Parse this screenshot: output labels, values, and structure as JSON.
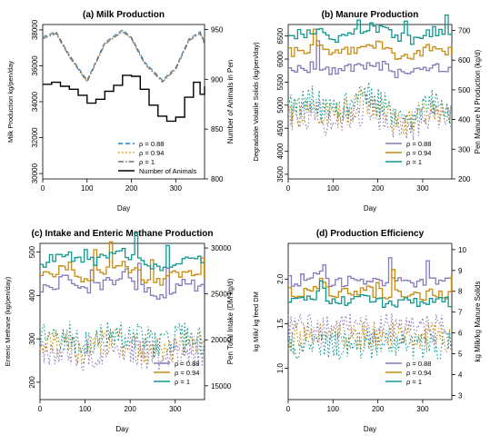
{
  "colors": {
    "purple": "#8878b8",
    "orange": "#c88a10",
    "teal": "#109890",
    "black": "#000000"
  },
  "chart_data": [
    {
      "type": "line",
      "title": "(a) Milk Production",
      "xlabel": "Day",
      "ylabel": "Milk Production kg/pen/day",
      "ylabel_right": "Number of Animals in Pen",
      "xlim": [
        0,
        365
      ],
      "ylim": [
        29700,
        38300
      ],
      "ylim_right": [
        800,
        955
      ],
      "xticks": [
        "0",
        "100",
        "200",
        "300"
      ],
      "yticks": [
        "30000",
        "32000",
        "34000",
        "36000",
        "38000"
      ],
      "yticks_right": [
        "800",
        "850",
        "900",
        "950"
      ],
      "legend_position": "bottom-right",
      "series": [
        {
          "name": "ρ = 0.88",
          "axis": "left",
          "style": "dashed",
          "color": "#2a7ab8",
          "x": [
            0,
            30,
            60,
            100,
            140,
            180,
            200,
            230,
            270,
            300,
            330,
            355,
            365
          ],
          "y": [
            37600,
            37900,
            36600,
            35200,
            37300,
            38000,
            37600,
            36200,
            35200,
            35900,
            37500,
            37900,
            37300
          ]
        },
        {
          "name": "ρ = 0.94",
          "axis": "left",
          "style": "dotted",
          "color": "#c88a10",
          "x": [
            0,
            30,
            60,
            100,
            140,
            180,
            200,
            230,
            270,
            300,
            330,
            355,
            365
          ],
          "y": [
            37550,
            37850,
            36550,
            35150,
            37250,
            37950,
            37550,
            36150,
            35150,
            35850,
            37450,
            37850,
            37250
          ]
        },
        {
          "name": "ρ = 1",
          "axis": "left",
          "style": "dashdot",
          "color": "#707070",
          "x": [
            0,
            30,
            60,
            100,
            140,
            180,
            200,
            230,
            270,
            300,
            330,
            355,
            365
          ],
          "y": [
            37500,
            37800,
            36500,
            35100,
            37200,
            37900,
            37500,
            36100,
            35100,
            35800,
            37400,
            37800,
            37200
          ]
        },
        {
          "name": "Number of Animals",
          "axis": "right",
          "style": "solid",
          "color": "#000000",
          "x": [
            0,
            20,
            40,
            60,
            80,
            100,
            120,
            140,
            160,
            180,
            200,
            220,
            240,
            260,
            280,
            300,
            320,
            340,
            355,
            365
          ],
          "y": [
            895,
            897,
            893,
            890,
            884,
            876,
            880,
            888,
            894,
            904,
            903,
            890,
            874,
            863,
            858,
            862,
            882,
            897,
            885,
            893
          ]
        }
      ]
    },
    {
      "type": "line",
      "title": "(b) Manure Production",
      "xlabel": "Day",
      "ylabel": "Degradable Volatile Solids (kg/pen/day)",
      "ylabel_right": "Pen Manure N Production (kg/d)",
      "xlim": [
        0,
        365
      ],
      "ylim": [
        3400,
        6750
      ],
      "ylim_right": [
        200,
        720
      ],
      "xticks": [
        "0",
        "100",
        "200",
        "300"
      ],
      "yticks": [
        "3500",
        "4000",
        "4500",
        "5000",
        "5500",
        "6000",
        "6500"
      ],
      "yticks_right": [
        "200",
        "300",
        "400",
        "500",
        "600",
        "700"
      ],
      "legend_position": "bottom-right",
      "series": [
        {
          "name": "ρ = 0.88",
          "axis": "left",
          "color": "#8878b8",
          "x": [
            0,
            30,
            60,
            90,
            120,
            150,
            180,
            210,
            240,
            270,
            300,
            330,
            365
          ],
          "y": [
            5720,
            5780,
            5850,
            5680,
            5760,
            5800,
            5920,
            5850,
            5700,
            5660,
            5780,
            5820,
            5760
          ]
        },
        {
          "name": "ρ = 0.94",
          "axis": "left",
          "color": "#c88a10",
          "x": [
            0,
            30,
            60,
            90,
            120,
            150,
            180,
            210,
            240,
            270,
            300,
            330,
            365
          ],
          "y": [
            6150,
            6200,
            6260,
            6080,
            6160,
            6210,
            6330,
            6260,
            6100,
            6060,
            6190,
            6230,
            6160
          ]
        },
        {
          "name": "ρ = 1",
          "axis": "left",
          "color": "#109890",
          "x": [
            0,
            30,
            60,
            90,
            120,
            150,
            180,
            210,
            240,
            270,
            300,
            330,
            365
          ],
          "y": [
            6520,
            6560,
            6640,
            6440,
            6520,
            6580,
            6700,
            6620,
            6470,
            6420,
            6550,
            6600,
            6530
          ]
        },
        {
          "name": "Pen Manure N (ρ = 0.88)",
          "axis": "right",
          "style": "dotted",
          "color": "#8878b8",
          "x": [
            0,
            30,
            60,
            90,
            120,
            150,
            180,
            210,
            240,
            270,
            300,
            330,
            365
          ],
          "y": [
            390,
            410,
            430,
            380,
            400,
            420,
            440,
            410,
            380,
            370,
            400,
            420,
            390
          ]
        },
        {
          "name": "Pen Manure N (ρ = 0.94)",
          "axis": "right",
          "style": "dotted",
          "color": "#c88a10",
          "x": [
            0,
            30,
            60,
            90,
            120,
            150,
            180,
            210,
            240,
            270,
            300,
            330,
            365
          ],
          "y": [
            410,
            430,
            450,
            400,
            420,
            440,
            460,
            430,
            400,
            390,
            420,
            440,
            410
          ]
        },
        {
          "name": "Pen Manure N (ρ = 1)",
          "axis": "right",
          "style": "dotted",
          "color": "#109890",
          "x": [
            0,
            30,
            60,
            90,
            120,
            150,
            180,
            210,
            240,
            270,
            300,
            330,
            365
          ],
          "y": [
            430,
            450,
            470,
            420,
            440,
            460,
            480,
            450,
            420,
            410,
            440,
            460,
            430
          ]
        }
      ]
    },
    {
      "type": "line",
      "title": "(c) Intake and Enteric Methane Production",
      "xlabel": "Day",
      "ylabel": "Enteric Methane (kg/pen/day)",
      "ylabel_right": "Pen Total Intake (DM kg/d)",
      "xlim": [
        0,
        365
      ],
      "ylim": [
        160,
        520
      ],
      "ylim_right": [
        13500,
        30500
      ],
      "xticks": [
        "0",
        "100",
        "200",
        "300"
      ],
      "yticks": [
        "200",
        "300",
        "400",
        "500"
      ],
      "yticks_right": [
        "15000",
        "20000",
        "25000",
        "30000"
      ],
      "legend_position": "bottom-right",
      "series": [
        {
          "name": "ρ = 0.88",
          "axis": "left",
          "color": "#8878b8",
          "x": [
            0,
            30,
            60,
            90,
            120,
            150,
            180,
            210,
            240,
            270,
            300,
            330,
            365
          ],
          "y": [
            415,
            425,
            440,
            410,
            420,
            430,
            445,
            425,
            405,
            400,
            420,
            430,
            410
          ]
        },
        {
          "name": "ρ = 0.94",
          "axis": "left",
          "color": "#c88a10",
          "x": [
            0,
            30,
            60,
            90,
            120,
            150,
            180,
            210,
            240,
            270,
            300,
            330,
            365
          ],
          "y": [
            445,
            455,
            470,
            440,
            450,
            460,
            475,
            455,
            435,
            430,
            450,
            460,
            445
          ]
        },
        {
          "name": "ρ = 1",
          "axis": "left",
          "color": "#109890",
          "x": [
            0,
            30,
            60,
            90,
            120,
            150,
            180,
            210,
            240,
            270,
            300,
            330,
            365
          ],
          "y": [
            475,
            485,
            500,
            470,
            480,
            490,
            505,
            485,
            465,
            460,
            480,
            490,
            475
          ]
        },
        {
          "name": "Pen Total Intake (ρ = 0.88)",
          "axis": "right",
          "style": "dotted",
          "color": "#8878b8",
          "x": [
            0,
            30,
            60,
            90,
            120,
            150,
            180,
            210,
            240,
            270,
            300,
            330,
            365
          ],
          "y": [
            18500,
            18800,
            19000,
            18200,
            18600,
            18900,
            19200,
            18800,
            18300,
            18100,
            18600,
            18900,
            18500
          ]
        },
        {
          "name": "Pen Total Intake (ρ = 0.94)",
          "axis": "right",
          "style": "dotted",
          "color": "#c88a10",
          "x": [
            0,
            30,
            60,
            90,
            120,
            150,
            180,
            210,
            240,
            270,
            300,
            330,
            365
          ],
          "y": [
            19200,
            19500,
            19700,
            18900,
            19300,
            19600,
            19900,
            19500,
            19000,
            18800,
            19300,
            19600,
            19200
          ]
        },
        {
          "name": "Pen Total Intake (ρ = 1)",
          "axis": "right",
          "style": "dotted",
          "color": "#109890",
          "x": [
            0,
            30,
            60,
            90,
            120,
            150,
            180,
            210,
            240,
            270,
            300,
            330,
            365
          ],
          "y": [
            20000,
            20300,
            20500,
            19700,
            20100,
            20400,
            20700,
            20300,
            19800,
            19600,
            20100,
            20400,
            20000
          ]
        }
      ]
    },
    {
      "type": "line",
      "title": "(d) Production Efficiency",
      "xlabel": "Day",
      "ylabel": "kg Milk/ kg feed DM",
      "ylabel_right": "kg Milk/kg Manure Solids",
      "xlim": [
        0,
        365
      ],
      "ylim": [
        0.65,
        2.4
      ],
      "ylim_right": [
        2.8,
        10.3
      ],
      "xticks": [
        "0",
        "100",
        "200",
        "300"
      ],
      "yticks": [
        "1.0",
        "1.5",
        "2.0"
      ],
      "yticks_right": [
        "3",
        "4",
        "5",
        "6",
        "7",
        "8",
        "9",
        "10"
      ],
      "legend_position": "bottom-right",
      "series": [
        {
          "name": "ρ = 0.88",
          "axis": "left",
          "color": "#8878b8",
          "x": [
            0,
            30,
            60,
            75,
            90,
            120,
            150,
            180,
            210,
            240,
            270,
            300,
            330,
            365
          ],
          "y": [
            1.98,
            1.96,
            2.05,
            2.15,
            1.98,
            1.96,
            2.0,
            1.98,
            1.95,
            1.97,
            1.96,
            1.94,
            1.97,
            1.95
          ]
        },
        {
          "name": "ρ = 0.94",
          "axis": "left",
          "color": "#c88a10",
          "x": [
            0,
            30,
            60,
            75,
            90,
            120,
            150,
            180,
            210,
            240,
            270,
            300,
            330,
            365
          ],
          "y": [
            1.86,
            1.84,
            1.92,
            2.0,
            1.85,
            1.84,
            1.87,
            1.86,
            1.83,
            1.85,
            1.84,
            1.82,
            1.85,
            1.83
          ]
        },
        {
          "name": "ρ = 1",
          "axis": "left",
          "color": "#109890",
          "x": [
            0,
            30,
            60,
            75,
            90,
            120,
            150,
            180,
            210,
            240,
            270,
            300,
            330,
            365
          ],
          "y": [
            1.76,
            1.74,
            1.82,
            1.9,
            1.75,
            1.74,
            1.77,
            1.76,
            1.73,
            1.75,
            1.74,
            1.72,
            1.75,
            1.73
          ]
        },
        {
          "name": "kg Milk/kg Manure Solids (ρ = 0.88)",
          "axis": "right",
          "style": "dotted",
          "color": "#8878b8",
          "x": [
            0,
            60,
            120,
            180,
            240,
            300,
            365
          ],
          "y": [
            6.2,
            6.15,
            6.2,
            6.25,
            6.2,
            6.15,
            6.25
          ]
        },
        {
          "name": "kg Milk/kg Manure Solids (ρ = 0.94)",
          "axis": "right",
          "style": "dotted",
          "color": "#c88a10",
          "x": [
            0,
            60,
            120,
            180,
            240,
            300,
            365
          ],
          "y": [
            5.8,
            5.75,
            5.8,
            5.85,
            5.8,
            5.75,
            5.85
          ]
        },
        {
          "name": "kg Milk/kg Manure Solids (ρ = 1)",
          "axis": "right",
          "style": "dotted",
          "color": "#109890",
          "x": [
            0,
            60,
            120,
            180,
            240,
            300,
            365
          ],
          "y": [
            5.45,
            5.4,
            5.45,
            5.5,
            5.45,
            5.4,
            5.5
          ]
        }
      ]
    }
  ]
}
